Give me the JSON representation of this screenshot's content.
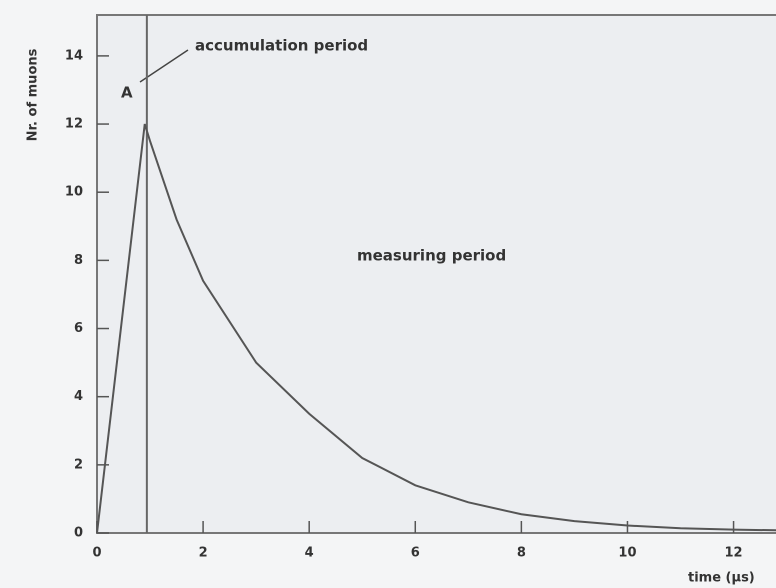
{
  "chart_data": {
    "type": "line",
    "x": [
      0,
      0.9,
      1,
      1.5,
      2,
      3,
      4,
      5,
      6,
      7,
      8,
      9,
      10,
      11,
      12,
      12.8
    ],
    "series": [
      {
        "color": "#555555",
        "values": [
          0,
          12,
          11.5,
          9.2,
          7.4,
          5.0,
          3.5,
          2.2,
          1.4,
          0.9,
          0.55,
          0.35,
          0.22,
          0.14,
          0.1,
          0.08
        ]
      }
    ],
    "vline": 0.94,
    "xlim": [
      0,
      12.8
    ],
    "xticks": [
      0,
      2,
      4,
      6,
      8,
      10,
      12
    ],
    "ylim": [
      0,
      15.2
    ],
    "yticks": [
      0,
      2,
      4,
      6,
      8,
      10,
      12,
      14
    ],
    "xlabel": "time (µs)",
    "ylabel": "Nr. of muons",
    "annotations": [
      "accumulation period",
      "measuring period",
      "A"
    ]
  }
}
